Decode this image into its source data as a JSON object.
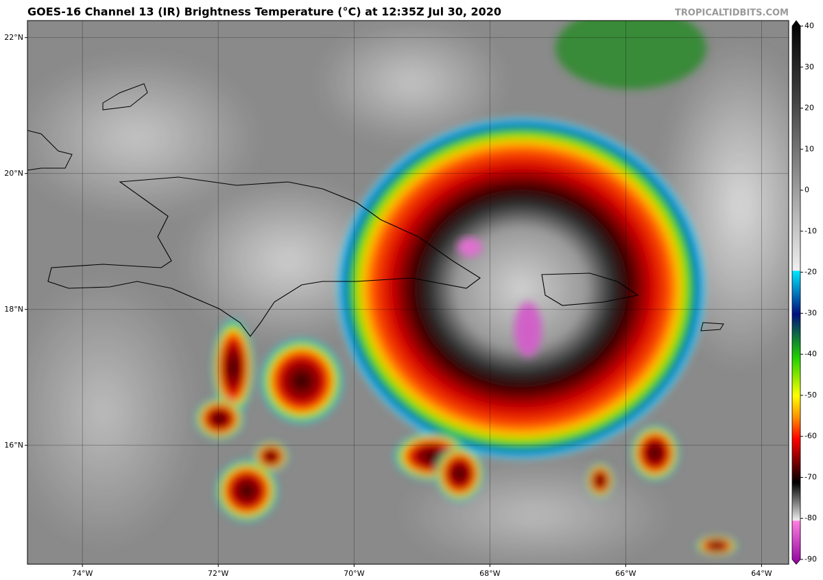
{
  "map": {
    "title": "GOES-16 Channel 13 (IR) Brightness Temperature (°C) at 12:35Z Jul 30, 2020",
    "credit": "TROPICALTIDBITS.COM",
    "lon_range": [
      -74.81,
      -63.6
    ],
    "lat_range": [
      14.25,
      22.25
    ],
    "lon_ticks": [
      {
        "value": -74,
        "label": "74°W"
      },
      {
        "value": -72,
        "label": "72°W"
      },
      {
        "value": -70,
        "label": "70°W"
      },
      {
        "value": -68,
        "label": "68°W"
      },
      {
        "value": -66,
        "label": "66°W"
      },
      {
        "value": -64,
        "label": "64°W"
      }
    ],
    "lat_ticks": [
      {
        "value": 22,
        "label": "22°N"
      },
      {
        "value": 20,
        "label": "20°N"
      },
      {
        "value": 18,
        "label": "18°N"
      },
      {
        "value": 16,
        "label": "16°N"
      }
    ],
    "grid": true,
    "colorbar": {
      "range": [
        -90,
        40
      ],
      "ticks": [
        40,
        30,
        20,
        10,
        0,
        -10,
        -20,
        -30,
        -40,
        -50,
        -60,
        -70,
        -80,
        -90
      ]
    }
  }
}
